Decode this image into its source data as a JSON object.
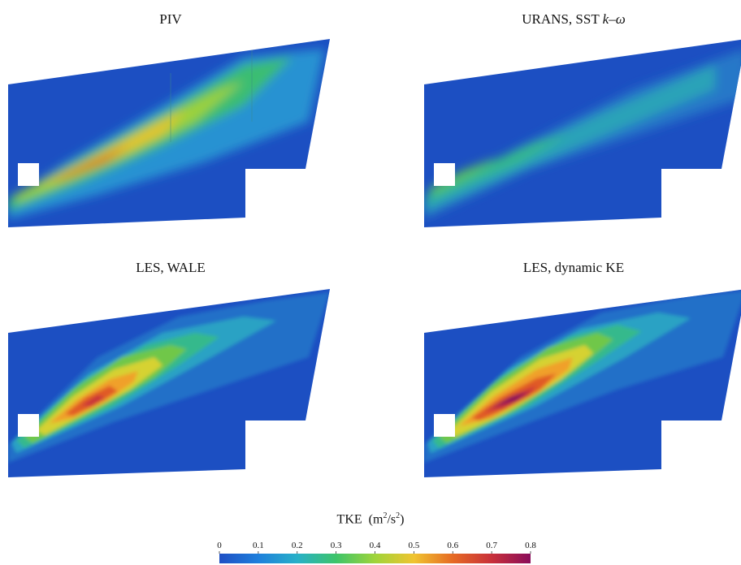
{
  "panels": [
    {
      "id": "piv",
      "title": "PIV"
    },
    {
      "id": "urans",
      "title_prefix": "URANS, SST ",
      "title_k": "k",
      "title_dash": "–",
      "title_omega": "ω"
    },
    {
      "id": "les-wale",
      "title": "LES, WALE"
    },
    {
      "id": "les-dke",
      "title": "LES, dynamic KE"
    }
  ],
  "colorbar": {
    "label_main": "TKE",
    "label_unit_open": "(m",
    "label_unit_sup1": "2",
    "label_unit_mid": "/s",
    "label_unit_sup2": "2",
    "label_unit_close": ")",
    "ticks": [
      "0",
      "0.1",
      "0.2",
      "0.3",
      "0.4",
      "0.5",
      "0.6",
      "0.7",
      "0.8"
    ],
    "range": [
      0,
      0.8
    ],
    "colors": [
      "#1f4fc4",
      "#1f6fd9",
      "#2a9bd9",
      "#2bb8b0",
      "#3dc46a",
      "#8fd13a",
      "#d8d531",
      "#f0c030",
      "#f09a2a",
      "#e66a24",
      "#d8402a",
      "#b51e4a",
      "#8a0c5a"
    ]
  }
}
